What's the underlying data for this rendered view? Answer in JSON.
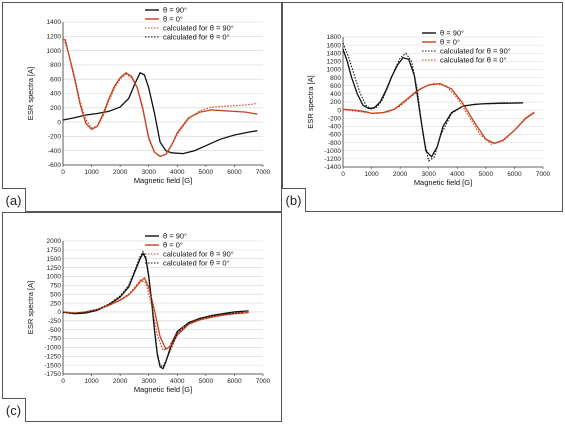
{
  "colors": {
    "black": "#111111",
    "orange": "#c8401a",
    "grid": "#d6d6d6",
    "frame": "#555555"
  },
  "chart_data": [
    {
      "type": "line",
      "tag": "(a)",
      "xlabel": "Magnetic field [G]",
      "ylabel": "ESR spectra [A]",
      "xlim": [
        0,
        7000
      ],
      "ylim": [
        -600,
        1400
      ],
      "xticks": [
        0,
        1000,
        2000,
        3000,
        4000,
        5000,
        6000,
        7000
      ],
      "yticks": [
        -600,
        -400,
        -200,
        0,
        200,
        400,
        600,
        800,
        1000,
        1200,
        1400
      ],
      "grid": true,
      "legend": "top-right",
      "series": [
        {
          "name": "θ = 90°",
          "color": "black",
          "style": "solid",
          "x": [
            0,
            400,
            800,
            1200,
            1600,
            2000,
            2300,
            2500,
            2700,
            2850,
            3000,
            3200,
            3400,
            3600,
            3800,
            4200,
            4600,
            5000,
            5500,
            6000,
            6500,
            6800
          ],
          "y": [
            30,
            60,
            100,
            120,
            150,
            210,
            330,
            520,
            690,
            660,
            480,
            130,
            -280,
            -400,
            -430,
            -440,
            -400,
            -330,
            -240,
            -180,
            -140,
            -120
          ]
        },
        {
          "name": "θ = 0°",
          "color": "orange",
          "style": "solid",
          "x": [
            0,
            80,
            200,
            400,
            600,
            800,
            1000,
            1200,
            1400,
            1600,
            1800,
            2000,
            2200,
            2400,
            2600,
            2800,
            3000,
            3200,
            3400,
            3600,
            3800,
            4000,
            4400,
            4800,
            5200,
            5600,
            6000,
            6400,
            6800
          ],
          "y": [
            1160,
            1150,
            950,
            620,
            250,
            -20,
            -100,
            -60,
            110,
            320,
            500,
            620,
            690,
            640,
            480,
            180,
            -220,
            -420,
            -480,
            -450,
            -320,
            -150,
            60,
            140,
            170,
            160,
            150,
            140,
            110
          ]
        },
        {
          "name": "calculated for θ = 90°",
          "color": "orange",
          "style": "dotted",
          "x": [
            0,
            200,
            400,
            600,
            800,
            1000,
            1200,
            1400,
            1600,
            1800,
            2000,
            2200,
            2400,
            2600,
            2800,
            3000,
            3200,
            3400,
            3600,
            3800,
            4000,
            4400,
            4800,
            5200,
            5600,
            6000,
            6400,
            6800
          ],
          "y": [
            1200,
            960,
            650,
            290,
            30,
            -80,
            -60,
            80,
            290,
            470,
            600,
            670,
            620,
            480,
            160,
            -240,
            -420,
            -480,
            -450,
            -330,
            -170,
            50,
            160,
            210,
            220,
            230,
            240,
            260
          ]
        },
        {
          "name": "calculated for θ = 0°",
          "color": "black",
          "style": "dotted",
          "x": [],
          "y": []
        }
      ]
    },
    {
      "type": "line",
      "tag": "(b)",
      "xlabel": "Magnetic field [G]",
      "ylabel": "ESR spectra [A]",
      "xlim": [
        0,
        7000
      ],
      "ylim": [
        -1400,
        1800
      ],
      "xticks": [
        0,
        1000,
        2000,
        3000,
        4000,
        5000,
        6000,
        7000
      ],
      "yticks": [
        -1400,
        -1200,
        -1000,
        -800,
        -600,
        -400,
        -200,
        0,
        200,
        400,
        600,
        800,
        1000,
        1200,
        1400,
        1600,
        1800
      ],
      "grid": true,
      "legend": "top-right",
      "series": [
        {
          "name": "θ = 90°",
          "color": "black",
          "style": "solid",
          "x": [
            0,
            150,
            300,
            500,
            700,
            900,
            1100,
            1300,
            1500,
            1700,
            1900,
            2100,
            2300,
            2500,
            2700,
            2900,
            3100,
            3300,
            3500,
            3800,
            4200,
            4600,
            5000,
            5500,
            6000,
            6300
          ],
          "y": [
            1500,
            1200,
            800,
            400,
            120,
            40,
            60,
            200,
            480,
            820,
            1100,
            1290,
            1250,
            850,
            -100,
            -1000,
            -1150,
            -900,
            -400,
            -60,
            100,
            140,
            160,
            170,
            175,
            180
          ]
        },
        {
          "name": "θ = 0°",
          "color": "orange",
          "style": "solid",
          "x": [
            0,
            400,
            800,
            1000,
            1400,
            1800,
            2200,
            2600,
            3000,
            3400,
            3800,
            4200,
            4600,
            5000,
            5300,
            5600,
            6000,
            6400,
            6700
          ],
          "y": [
            20,
            0,
            -40,
            -80,
            -60,
            20,
            250,
            480,
            620,
            650,
            520,
            160,
            -300,
            -720,
            -820,
            -740,
            -500,
            -200,
            -60
          ]
        },
        {
          "name": "calculated for θ = 90°",
          "color": "black",
          "style": "dotted",
          "x": [
            0,
            200,
            400,
            600,
            800,
            1000,
            1200,
            1400,
            1600,
            1800,
            2000,
            2200,
            2400,
            2600,
            2800,
            3000,
            3200,
            3400,
            3800,
            4200,
            4800,
            5400,
            6000,
            6300
          ],
          "y": [
            1650,
            1300,
            850,
            420,
            120,
            20,
            80,
            280,
            620,
            980,
            1280,
            1400,
            1200,
            500,
            -600,
            -1250,
            -1150,
            -650,
            -80,
            100,
            150,
            160,
            170,
            175
          ]
        },
        {
          "name": "calculated for θ = 0°",
          "color": "orange",
          "style": "dotted",
          "x": [
            0,
            400,
            800,
            1200,
            1600,
            2000,
            2400,
            2800,
            3200,
            3600,
            4000,
            4400,
            4800,
            5200,
            5600,
            6000,
            6400,
            6700
          ],
          "y": [
            10,
            -20,
            -60,
            -80,
            -40,
            100,
            340,
            560,
            660,
            600,
            300,
            -150,
            -600,
            -840,
            -760,
            -500,
            -180,
            -40
          ]
        }
      ]
    },
    {
      "type": "line",
      "tag": "(c)",
      "xlabel": "Magnetic field [G]",
      "ylabel": "ESR spectra [A]",
      "xlim": [
        0,
        7000
      ],
      "ylim": [
        -1750,
        2000
      ],
      "xticks": [
        0,
        1000,
        2000,
        3000,
        4000,
        5000,
        6000,
        7000
      ],
      "yticks": [
        -1750,
        -1500,
        -1250,
        -1000,
        -750,
        -500,
        -250,
        0,
        250,
        500,
        750,
        1000,
        1250,
        1500,
        1750,
        2000
      ],
      "grid": true,
      "legend": "top-right",
      "series": [
        {
          "name": "θ = 90°",
          "color": "black",
          "style": "solid",
          "x": [
            0,
            400,
            800,
            1200,
            1600,
            2000,
            2300,
            2500,
            2700,
            2800,
            2900,
            3000,
            3100,
            3200,
            3300,
            3400,
            3500,
            3600,
            3800,
            4000,
            4400,
            4800,
            5200,
            5600,
            6000,
            6500
          ],
          "y": [
            0,
            -50,
            -30,
            50,
            200,
            420,
            700,
            1100,
            1500,
            1650,
            1500,
            1000,
            300,
            -500,
            -1200,
            -1550,
            -1600,
            -1400,
            -900,
            -550,
            -300,
            -180,
            -100,
            -50,
            0,
            30
          ]
        },
        {
          "name": "θ = 0°",
          "color": "orange",
          "style": "solid",
          "x": [
            0,
            400,
            800,
            1200,
            1600,
            2000,
            2300,
            2500,
            2700,
            2850,
            3000,
            3200,
            3400,
            3600,
            3800,
            4000,
            4400,
            4800,
            5200,
            5600,
            6000,
            6500
          ],
          "y": [
            0,
            -30,
            0,
            70,
            180,
            330,
            480,
            650,
            850,
            960,
            700,
            50,
            -700,
            -1050,
            -950,
            -650,
            -350,
            -220,
            -150,
            -90,
            -50,
            -20
          ]
        },
        {
          "name": "calculated for θ = 90°",
          "color": "orange",
          "style": "dotted",
          "x": [
            0,
            400,
            800,
            1200,
            1600,
            2000,
            2300,
            2500,
            2700,
            2900,
            3100,
            3300,
            3500,
            3700,
            3900,
            4200,
            4600,
            5000,
            5500,
            6000,
            6500
          ],
          "y": [
            -20,
            -40,
            0,
            80,
            200,
            350,
            500,
            680,
            900,
            820,
            200,
            -650,
            -1080,
            -1000,
            -700,
            -420,
            -250,
            -150,
            -80,
            -40,
            -20
          ]
        },
        {
          "name": "calculated for θ = 0°",
          "color": "black",
          "style": "dotted",
          "x": [
            0,
            400,
            800,
            1200,
            1600,
            2000,
            2300,
            2500,
            2700,
            2800,
            2900,
            3000,
            3100,
            3200,
            3300,
            3400,
            3500,
            3700,
            4000,
            4400,
            4800,
            5300,
            5800,
            6300
          ],
          "y": [
            -20,
            -40,
            -10,
            60,
            220,
            450,
            750,
            1150,
            1560,
            1700,
            1550,
            1050,
            350,
            -450,
            -1150,
            -1500,
            -1550,
            -1200,
            -600,
            -320,
            -190,
            -100,
            -50,
            -10
          ]
        }
      ]
    }
  ]
}
